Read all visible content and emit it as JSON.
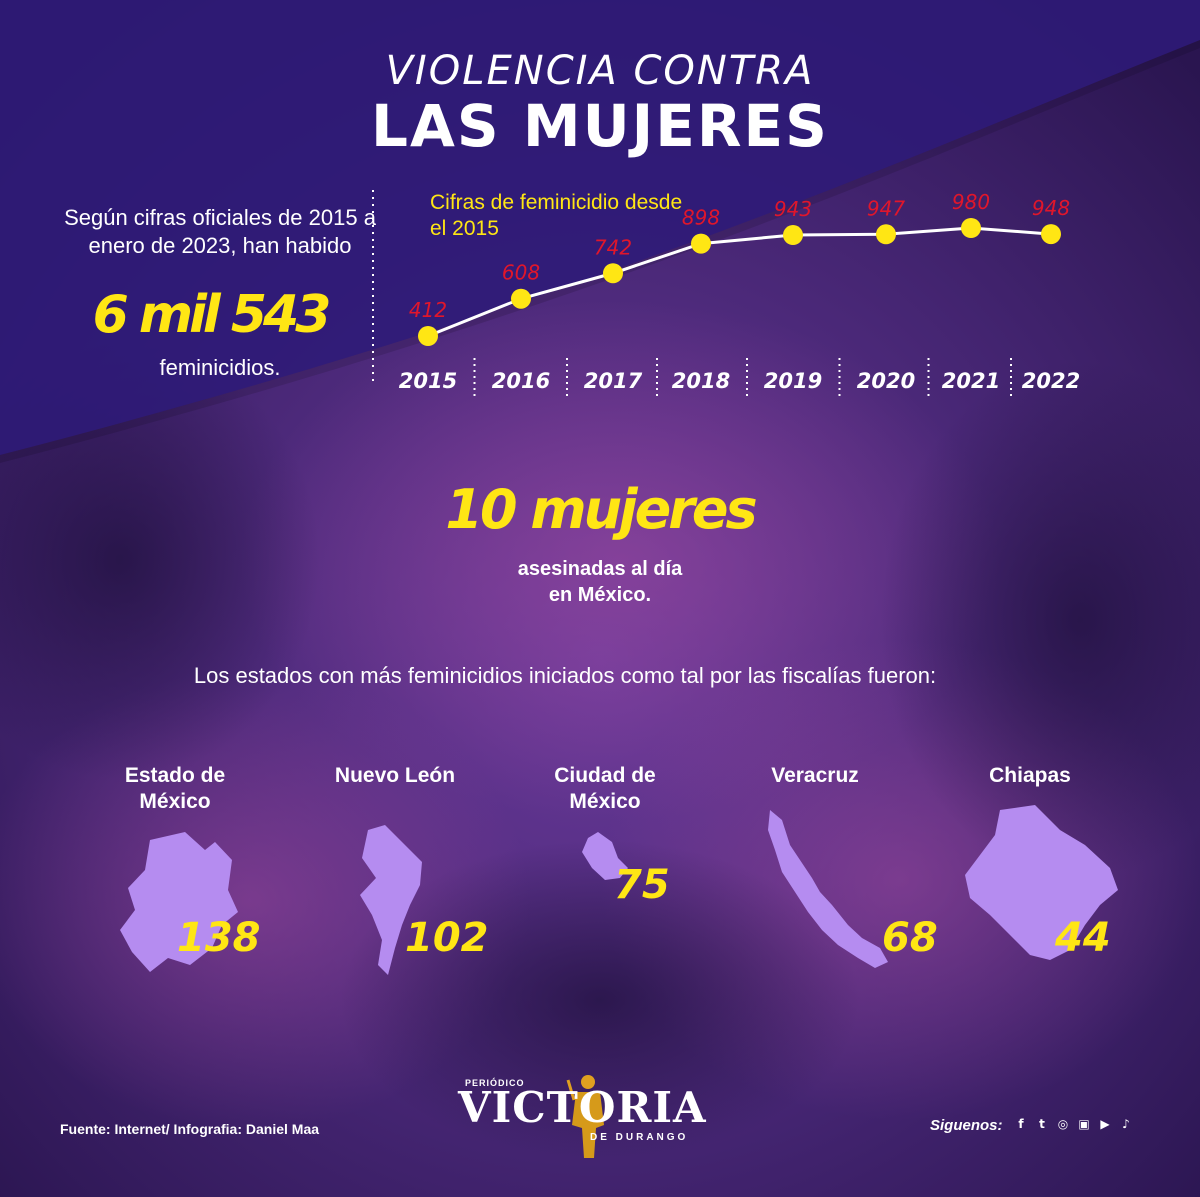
{
  "colors": {
    "background": "#3a1f6b",
    "top_band": "#2e1a78",
    "accent_yellow": "#ffe614",
    "value_red": "#e0162b",
    "state_shape": "#b58cf0"
  },
  "header": {
    "title_line1": "VIOLENCIA CONTRA",
    "title_line2": "LAS MUJERES"
  },
  "intro": {
    "text": "Según cifras oficiales de 2015 a enero de 2023, han habido",
    "total": "6 mil 543",
    "after": "feminicidios."
  },
  "chart_data": {
    "type": "line",
    "title": "Cifras de feminicidio desde el 2015",
    "x": [
      "2015",
      "2016",
      "2017",
      "2018",
      "2019",
      "2020",
      "2021",
      "2022"
    ],
    "series": [
      {
        "values": [
          412,
          608,
          742,
          898,
          943,
          947,
          980,
          948
        ]
      }
    ],
    "data_labels": [
      "412",
      "608",
      "742",
      "898",
      "943",
      "947",
      "980",
      "948"
    ],
    "grid": false
  },
  "highlight": {
    "big": "10 mujeres",
    "sub_line1": "asesinadas al día",
    "sub_line2": "en México."
  },
  "states_section": {
    "intro": "Los estados con más feminicidios iniciados como tal por las fiscalías fueron:",
    "states": [
      {
        "name": "Estado de México",
        "value": "138",
        "icon": "estado-de-mexico-map-shape"
      },
      {
        "name": "Nuevo León",
        "value": "102",
        "icon": "nuevo-leon-map-shape"
      },
      {
        "name": "Ciudad de México",
        "value": "75",
        "icon": "ciudad-de-mexico-map-shape"
      },
      {
        "name": "Veracruz",
        "value": "68",
        "icon": "veracruz-map-shape"
      },
      {
        "name": "Chiapas",
        "value": "44",
        "icon": "chiapas-map-shape"
      }
    ]
  },
  "footer": {
    "source": "Fuente: Internet/ Infografia: Daniel Maa",
    "logo_small": "PERIÓDICO",
    "logo_main": "VICTORIA",
    "logo_sub": "DE DURANGO",
    "follow_label": "Siguenos:",
    "social_icons": [
      "facebook-icon",
      "twitter-icon",
      "whatsapp-icon",
      "instagram-icon",
      "youtube-icon",
      "tiktok-icon"
    ]
  }
}
